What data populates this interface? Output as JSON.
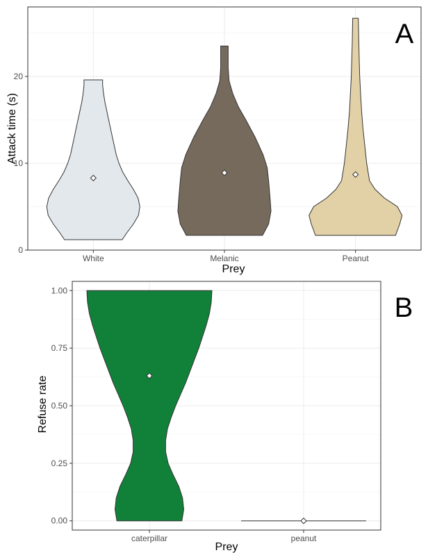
{
  "chart_data": [
    {
      "type": "violin",
      "panel_label": "A",
      "xlabel": "Prey",
      "ylabel": "Attack time (s)",
      "ylim": [
        0,
        28
      ],
      "yticks": [
        "0",
        "10",
        "20"
      ],
      "categories": [
        "White",
        "Melanic",
        "Peanut"
      ],
      "colors": [
        "#e3e8ec",
        "#766a5c",
        "#e2d1a6"
      ],
      "grid": true,
      "violins": [
        {
          "category": "White",
          "mean": 8.3,
          "min": 1.2,
          "max": 19.6,
          "profile": [
            [
              1.2,
              0.62
            ],
            [
              2,
              0.72
            ],
            [
              3,
              0.86
            ],
            [
              4,
              0.97
            ],
            [
              5,
              1.0
            ],
            [
              6,
              0.96
            ],
            [
              7,
              0.86
            ],
            [
              8,
              0.74
            ],
            [
              9,
              0.63
            ],
            [
              10,
              0.55
            ],
            [
              11,
              0.49
            ],
            [
              12,
              0.45
            ],
            [
              13,
              0.41
            ],
            [
              14,
              0.37
            ],
            [
              15,
              0.33
            ],
            [
              16,
              0.29
            ],
            [
              17,
              0.25
            ],
            [
              18,
              0.22
            ],
            [
              19,
              0.2
            ],
            [
              19.6,
              0.2
            ]
          ]
        },
        {
          "category": "Melanic",
          "mean": 8.9,
          "min": 1.7,
          "max": 23.5,
          "profile": [
            [
              1.7,
              0.82
            ],
            [
              3,
              0.95
            ],
            [
              4.5,
              1.0
            ],
            [
              6,
              0.98
            ],
            [
              8,
              0.95
            ],
            [
              9.5,
              0.92
            ],
            [
              11,
              0.83
            ],
            [
              13,
              0.66
            ],
            [
              15,
              0.46
            ],
            [
              16.5,
              0.3
            ],
            [
              18,
              0.18
            ],
            [
              19.5,
              0.1
            ],
            [
              21,
              0.08
            ],
            [
              23.5,
              0.08
            ]
          ]
        },
        {
          "category": "Peanut",
          "mean": 8.7,
          "min": 1.7,
          "max": 26.7,
          "profile": [
            [
              1.7,
              0.86
            ],
            [
              3,
              0.95
            ],
            [
              4,
              1.0
            ],
            [
              5,
              0.9
            ],
            [
              6,
              0.62
            ],
            [
              7,
              0.42
            ],
            [
              8,
              0.3
            ],
            [
              10,
              0.24
            ],
            [
              12,
              0.2
            ],
            [
              14,
              0.16
            ],
            [
              16,
              0.13
            ],
            [
              18,
              0.11
            ],
            [
              20,
              0.09
            ],
            [
              22,
              0.08
            ],
            [
              24,
              0.07
            ],
            [
              26.7,
              0.06
            ]
          ]
        }
      ]
    },
    {
      "type": "violin",
      "panel_label": "B",
      "xlabel": "Prey",
      "ylabel": "Refuse rate",
      "ylim": [
        -0.04,
        1.04
      ],
      "yticks": [
        "0.00",
        "0.25",
        "0.50",
        "0.75",
        "1.00"
      ],
      "categories": [
        "caterpillar",
        "peanut"
      ],
      "colors": [
        "#11813a",
        "#ffffff"
      ],
      "grid": true,
      "violins": [
        {
          "category": "caterpillar",
          "mean": 0.63,
          "min": 0.0,
          "max": 1.0,
          "profile": [
            [
              0,
              0.52
            ],
            [
              0.05,
              0.55
            ],
            [
              0.1,
              0.53
            ],
            [
              0.15,
              0.47
            ],
            [
              0.2,
              0.38
            ],
            [
              0.25,
              0.3
            ],
            [
              0.3,
              0.26
            ],
            [
              0.35,
              0.26
            ],
            [
              0.4,
              0.29
            ],
            [
              0.45,
              0.35
            ],
            [
              0.5,
              0.42
            ],
            [
              0.55,
              0.5
            ],
            [
              0.6,
              0.58
            ],
            [
              0.65,
              0.65
            ],
            [
              0.7,
              0.72
            ],
            [
              0.75,
              0.79
            ],
            [
              0.8,
              0.85
            ],
            [
              0.85,
              0.91
            ],
            [
              0.9,
              0.96
            ],
            [
              0.95,
              0.99
            ],
            [
              1.0,
              1.0
            ]
          ]
        },
        {
          "category": "peanut",
          "mean": 0.0,
          "min": 0.0,
          "max": 0.0,
          "profile": []
        }
      ]
    }
  ]
}
